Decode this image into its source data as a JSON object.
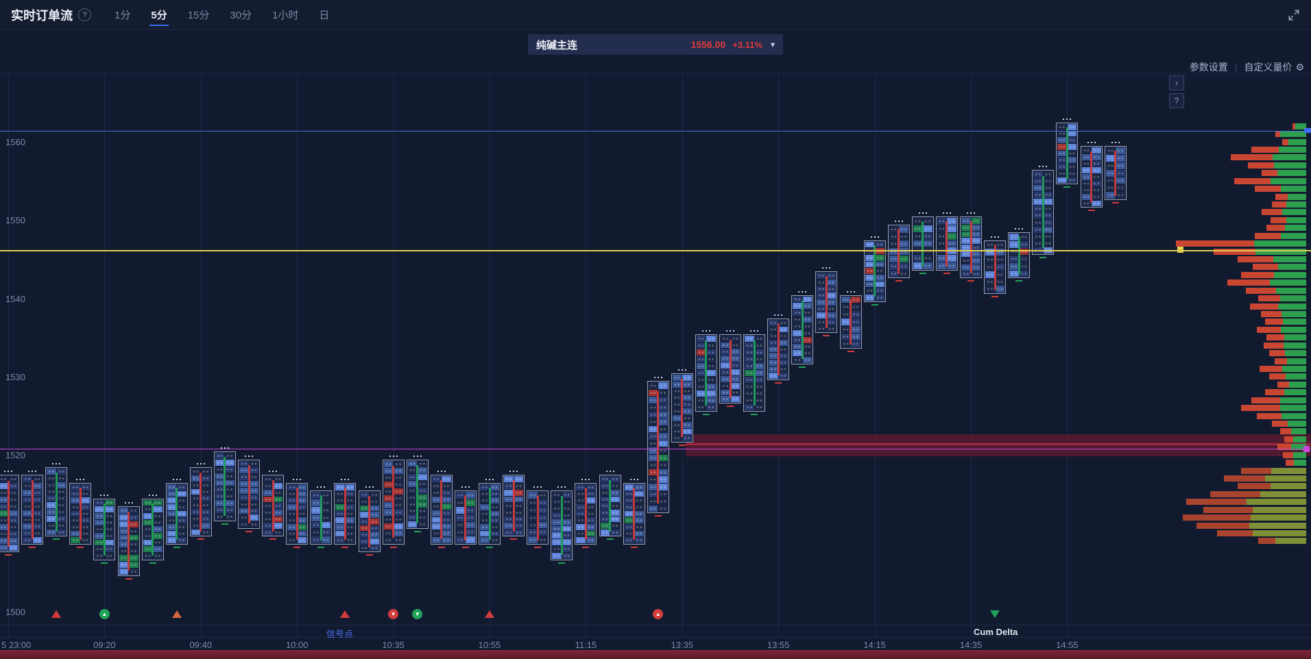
{
  "header": {
    "title": "实时订单流",
    "help_label": "?",
    "tabs": [
      {
        "label": "1分",
        "active": false
      },
      {
        "label": "5分",
        "active": true
      },
      {
        "label": "15分",
        "active": false
      },
      {
        "label": "30分",
        "active": false
      },
      {
        "label": "1小时",
        "active": false
      },
      {
        "label": "日",
        "active": false
      }
    ]
  },
  "instrument": {
    "name": "纯碱主连",
    "price": "1556.00",
    "change": "+3.11%",
    "chevron": "▾"
  },
  "toolbar": {
    "settings_label": "参数设置",
    "divider": "|",
    "custom_label": "自定义量价",
    "gear_icon": "⚙"
  },
  "side_buttons": {
    "collapse_label": "›",
    "help_label": "?"
  },
  "footer": {
    "signal_label": "信号点",
    "cum_delta_label": "Cum Delta"
  },
  "icons": {
    "arrow_up": "▲",
    "arrow_down": "▼"
  },
  "colors": {
    "accent_blue": "#3b6ef5",
    "down_red": "#d23c3c",
    "up_green": "#21a35a",
    "line_blue": "#4a6fd8",
    "line_yellow": "#e3cf4e",
    "line_magenta": "#c94ad8",
    "profile_green": "#2e9e4f",
    "profile_red": "#c84632",
    "profile_olive": "#7e8f36",
    "profile_olive_red": "#a8442e",
    "price_red": "#e23b3b"
  },
  "axis": {
    "y_labels": [
      1560,
      1550,
      1540,
      1530,
      1520,
      1500
    ],
    "x_labels": [
      {
        "t": "5 23:00",
        "ci": 0
      },
      {
        "t": "09:20",
        "ci": 4
      },
      {
        "t": "09:40",
        "ci": 8
      },
      {
        "t": "10:00",
        "ci": 12
      },
      {
        "t": "10:35",
        "ci": 16
      },
      {
        "t": "10:55",
        "ci": 20
      },
      {
        "t": "11:15",
        "ci": 24
      },
      {
        "t": "13:35",
        "ci": 28
      },
      {
        "t": "13:55",
        "ci": 32
      },
      {
        "t": "14:15",
        "ci": 36
      },
      {
        "t": "14:35",
        "ci": 40
      },
      {
        "t": "14:55",
        "ci": 44
      }
    ]
  },
  "chart_data": {
    "type": "footprint-orderflow",
    "interval": "5分",
    "price_axis": {
      "min": 1500,
      "max": 1565,
      "visible_labels": [
        1560,
        1550,
        1540,
        1530,
        1520,
        1500
      ]
    },
    "time_labels": [
      "23:00",
      "09:20",
      "09:40",
      "10:00",
      "10:35",
      "10:55",
      "11:15",
      "13:35",
      "13:55",
      "14:15",
      "14:35",
      "14:55"
    ],
    "ref_lines": {
      "blue_high": 1561.4,
      "yellow_poc": 1546.2,
      "magenta": 1520.8,
      "band": [
        1522.6,
        1519.8
      ]
    },
    "candles": [
      [
        1517,
        1508,
        "r",
        ""
      ],
      [
        1517,
        1509,
        "r",
        ""
      ],
      [
        1518,
        1510,
        "g",
        ""
      ],
      [
        1516,
        1509,
        "r",
        ""
      ],
      [
        1514,
        1507,
        "g",
        "g"
      ],
      [
        1513,
        1505,
        "r",
        "g"
      ],
      [
        1514,
        1507,
        "g",
        "g"
      ],
      [
        1516,
        1509,
        "g",
        ""
      ],
      [
        1518,
        1510,
        "r",
        ""
      ],
      [
        1520,
        1512,
        "g",
        ""
      ],
      [
        1519,
        1511,
        "r",
        ""
      ],
      [
        1517,
        1510,
        "r",
        ""
      ],
      [
        1516,
        1509,
        "r",
        ""
      ],
      [
        1515,
        1509,
        "g",
        ""
      ],
      [
        1516,
        1509,
        "r",
        ""
      ],
      [
        1515,
        1508,
        "r",
        ""
      ],
      [
        1519,
        1509,
        "r",
        "r"
      ],
      [
        1519,
        1511,
        "g",
        "g"
      ],
      [
        1517,
        1509,
        "r",
        ""
      ],
      [
        1515,
        1509,
        "r",
        ""
      ],
      [
        1516,
        1509,
        "g",
        ""
      ],
      [
        1517,
        1510,
        "r",
        ""
      ],
      [
        1515,
        1509,
        "r",
        ""
      ],
      [
        1515,
        1507,
        "g",
        ""
      ],
      [
        1516,
        1509,
        "r",
        ""
      ],
      [
        1517,
        1510,
        "g",
        ""
      ],
      [
        1516,
        1509,
        "r",
        ""
      ],
      [
        1529,
        1513,
        "r",
        "r"
      ],
      [
        1530,
        1522,
        "r",
        ""
      ],
      [
        1535,
        1526,
        "g",
        ""
      ],
      [
        1535,
        1527,
        "r",
        ""
      ],
      [
        1535,
        1526,
        "g",
        ""
      ],
      [
        1537,
        1530,
        "r",
        ""
      ],
      [
        1540,
        1532,
        "g",
        ""
      ],
      [
        1543,
        1536,
        "r",
        ""
      ],
      [
        1540,
        1534,
        "r",
        ""
      ],
      [
        1547,
        1540,
        "g",
        ""
      ],
      [
        1549,
        1543,
        "r",
        ""
      ],
      [
        1550,
        1544,
        "g",
        ""
      ],
      [
        1550,
        1544,
        "r",
        ""
      ],
      [
        1550,
        1543,
        "r",
        ""
      ],
      [
        1547,
        1541,
        "r",
        ""
      ],
      [
        1548,
        1543,
        "g",
        ""
      ],
      [
        1556,
        1546,
        "g",
        ""
      ],
      [
        1562,
        1555,
        "g",
        ""
      ],
      [
        1559,
        1552,
        "r",
        ""
      ],
      [
        1559,
        1553,
        "r",
        ""
      ]
    ],
    "signals": [
      {
        "ci": 2,
        "shape": "tri",
        "dir": "up",
        "color": "#d23c3c"
      },
      {
        "ci": 4,
        "shape": "circle",
        "dir": "up",
        "color": "#21a35a"
      },
      {
        "ci": 7,
        "shape": "tri",
        "dir": "up",
        "color": "#d2693c"
      },
      {
        "ci": 14,
        "shape": "tri",
        "dir": "up",
        "color": "#d23c3c"
      },
      {
        "ci": 16,
        "shape": "circle",
        "dir": "down",
        "color": "#d23c3c"
      },
      {
        "ci": 17,
        "shape": "circle",
        "dir": "down",
        "color": "#21a35a"
      },
      {
        "ci": 20,
        "shape": "tri",
        "dir": "up",
        "color": "#d23c3c"
      },
      {
        "ci": 27,
        "shape": "circle",
        "dir": "up",
        "color": "#d23c3c"
      },
      {
        "ci": 41,
        "shape": "tri",
        "dir": "down",
        "color": "#21a35a"
      }
    ],
    "volume_profile": [
      [
        1562,
        20,
        0.2
      ],
      [
        1561,
        45,
        0.15
      ],
      [
        1560,
        35,
        0.25
      ],
      [
        1559,
        80,
        0.5
      ],
      [
        1558,
        110,
        0.55
      ],
      [
        1557,
        85,
        0.45
      ],
      [
        1556,
        65,
        0.35
      ],
      [
        1555,
        105,
        0.5
      ],
      [
        1554,
        75,
        0.5
      ],
      [
        1553,
        45,
        0.4
      ],
      [
        1552,
        50,
        0.42
      ],
      [
        1551,
        65,
        0.46
      ],
      [
        1550,
        52,
        0.44
      ],
      [
        1549,
        58,
        0.46
      ],
      [
        1548,
        75,
        0.5
      ],
      [
        1547,
        190,
        0.6
      ],
      [
        1546,
        135,
        0.45
      ],
      [
        1545,
        100,
        0.52
      ],
      [
        1544,
        78,
        0.48
      ],
      [
        1543,
        95,
        0.5
      ],
      [
        1542,
        115,
        0.54
      ],
      [
        1541,
        88,
        0.5
      ],
      [
        1540,
        70,
        0.46
      ],
      [
        1539,
        82,
        0.5
      ],
      [
        1538,
        66,
        0.46
      ],
      [
        1537,
        60,
        0.44
      ],
      [
        1536,
        72,
        0.48
      ],
      [
        1535,
        58,
        0.44
      ],
      [
        1534,
        62,
        0.46
      ],
      [
        1533,
        54,
        0.42
      ],
      [
        1532,
        46,
        0.4
      ],
      [
        1531,
        68,
        0.48
      ],
      [
        1530,
        54,
        0.44
      ],
      [
        1529,
        42,
        0.4
      ],
      [
        1528,
        60,
        0.46
      ],
      [
        1527,
        80,
        0.52
      ],
      [
        1526,
        95,
        0.6
      ],
      [
        1525,
        72,
        0.5
      ],
      [
        1524,
        50,
        0.46
      ],
      [
        1523,
        38,
        0.42
      ],
      [
        1522,
        32,
        0.4
      ],
      [
        1521,
        42,
        0.48
      ],
      [
        1520,
        34,
        0.44
      ],
      [
        1519,
        30,
        0.4
      ],
      [
        1518,
        95,
        0.46
      ],
      [
        1517,
        120,
        0.5
      ],
      [
        1516,
        100,
        0.48
      ],
      [
        1515,
        140,
        0.52
      ],
      [
        1514,
        175,
        0.5
      ],
      [
        1513,
        150,
        0.48
      ],
      [
        1512,
        180,
        0.55
      ],
      [
        1511,
        160,
        0.48
      ],
      [
        1510,
        130,
        0.4
      ],
      [
        1509,
        70,
        0.35
      ]
    ]
  }
}
